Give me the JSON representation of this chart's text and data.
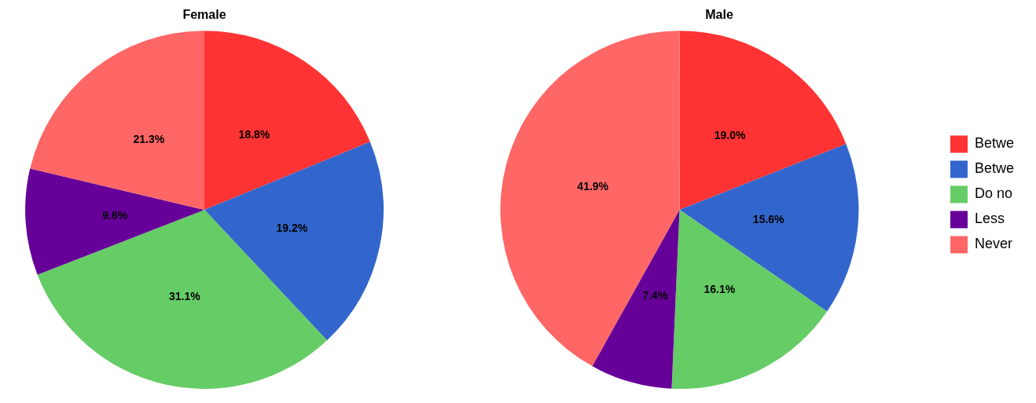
{
  "chart_data": [
    {
      "type": "pie",
      "title": "Female",
      "categories": [
        null,
        null,
        null,
        null,
        null
      ],
      "values": [
        18.8,
        19.2,
        31.1,
        9.6,
        21.3
      ],
      "value_labels": [
        "18.8%",
        "19.2%",
        "31.1%",
        "9.6%",
        "21.3%"
      ],
      "colors": [
        "#ff3333",
        "#3366cc",
        "#66cc66",
        "#660099",
        "#ff6666"
      ],
      "legend": false
    },
    {
      "type": "pie",
      "title": "Male",
      "categories": [
        "Betwe",
        "Betwe",
        "Do no",
        "Less",
        "Never"
      ],
      "values": [
        19.0,
        15.6,
        16.1,
        7.4,
        41.9
      ],
      "value_labels": [
        "19.0%",
        "15.6%",
        "16.1%",
        "7.4%",
        "41.9%"
      ],
      "colors": [
        "#ff3333",
        "#3366cc",
        "#66cc66",
        "#660099",
        "#ff6666"
      ],
      "legend": "right"
    }
  ]
}
